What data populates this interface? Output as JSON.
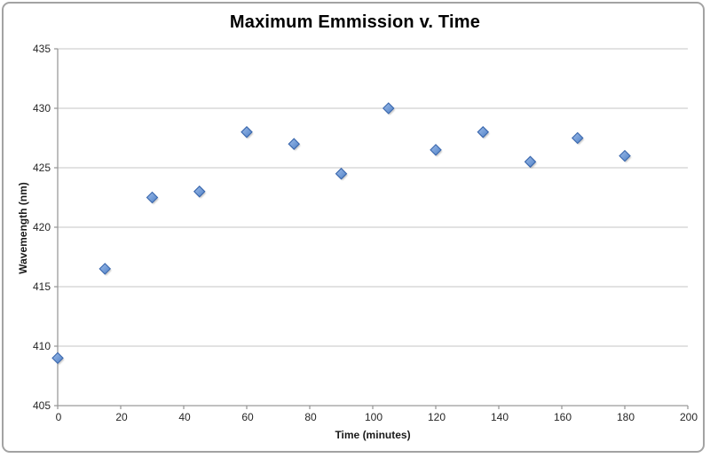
{
  "chart_data": {
    "type": "scatter",
    "title": "Maximum Emmission v. Time",
    "xlabel": "Time (minutes)",
    "ylabel": "Wavemength (nm)",
    "x": [
      0,
      15,
      30,
      45,
      60,
      75,
      90,
      105,
      120,
      135,
      150,
      165,
      180
    ],
    "y": [
      409,
      416.5,
      422.5,
      423,
      428,
      427,
      424.5,
      430,
      426.5,
      428,
      425.5,
      427.5,
      426
    ],
    "xlim": [
      0,
      200
    ],
    "ylim": [
      405,
      435
    ],
    "x_ticks": [
      0,
      20,
      40,
      60,
      80,
      100,
      120,
      140,
      160,
      180,
      200
    ],
    "y_ticks": [
      405,
      410,
      415,
      420,
      425,
      430,
      435
    ],
    "grid": "horizontal",
    "legend": "none",
    "marker": "diamond"
  },
  "colors": {
    "background": "#ffffff",
    "frame_border": "#a3a3a3",
    "gridline": "#c6c6c6",
    "axis": "#9a9a9a",
    "tick_text": "#262626",
    "marker_fill_light": "#9dbce9",
    "marker_fill_dark": "#4f81c7",
    "marker_stroke": "#3a67ad",
    "marker_shadow": "#9c9c9c"
  }
}
